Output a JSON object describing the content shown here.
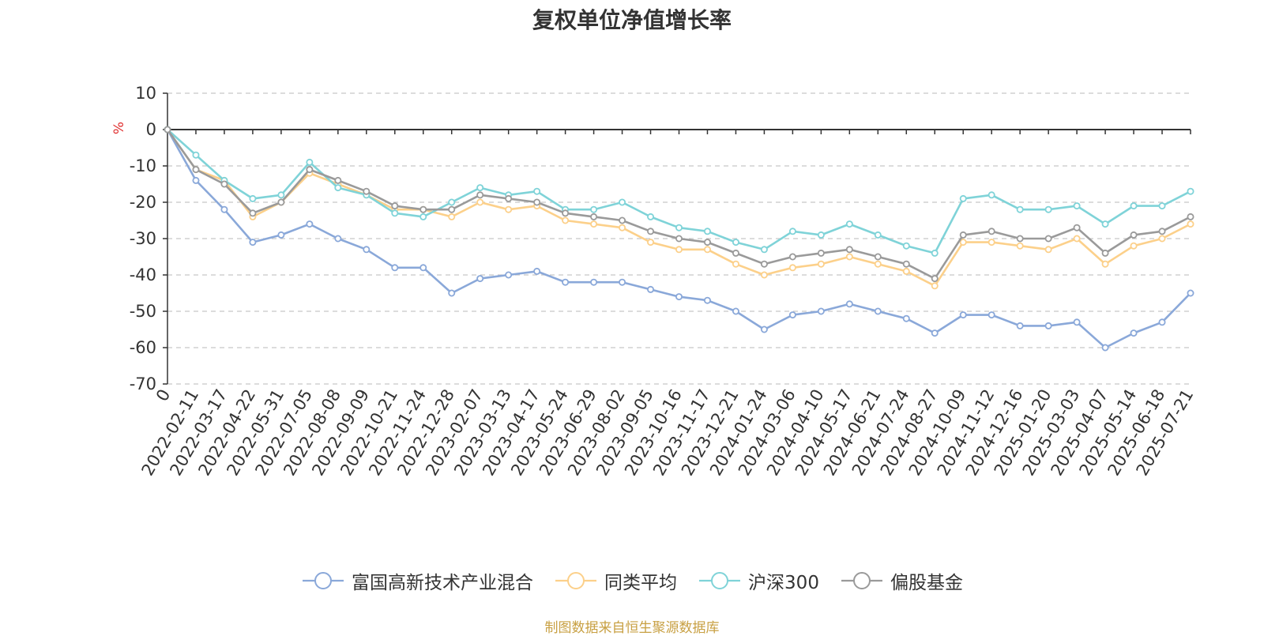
{
  "chart_data": {
    "type": "line",
    "title": "复权单位净值增长率",
    "ylabel": "%",
    "ylim": [
      -70,
      10
    ],
    "yticks": [
      10,
      0,
      -10,
      -20,
      -30,
      -40,
      -50,
      -60,
      -70
    ],
    "x_origin_label": "0",
    "grid": true,
    "legend_position": "bottom",
    "x": [
      "2022-02-11",
      "2022-03-17",
      "2022-04-22",
      "2022-05-31",
      "2022-07-05",
      "2022-08-08",
      "2022-09-09",
      "2022-10-21",
      "2022-11-24",
      "2022-12-28",
      "2023-02-07",
      "2023-03-13",
      "2023-04-17",
      "2023-05-24",
      "2023-06-29",
      "2023-08-02",
      "2023-09-05",
      "2023-10-16",
      "2023-11-17",
      "2023-12-21",
      "2024-01-24",
      "2024-03-06",
      "2024-04-10",
      "2024-05-17",
      "2024-06-21",
      "2024-07-24",
      "2024-08-27",
      "2024-10-09",
      "2024-11-12",
      "2024-12-16",
      "2025-01-20",
      "2025-03-03",
      "2025-04-07",
      "2025-05-14",
      "2025-06-18",
      "2025-07-21"
    ],
    "series": [
      {
        "name": "富国高新技术产业混合",
        "color": "#8aa8d9",
        "values": [
          -14,
          -22,
          -31,
          -29,
          -26,
          -30,
          -33,
          -38,
          -38,
          -45,
          -41,
          -40,
          -39,
          -42,
          -42,
          -42,
          -44,
          -46,
          -47,
          -50,
          -55,
          -51,
          -50,
          -48,
          -50,
          -52,
          -56,
          -51,
          -51,
          -54,
          -54,
          -53,
          -60,
          -56,
          -53,
          -45
        ]
      },
      {
        "name": "同类平均",
        "color": "#fcd08a",
        "values": [
          -11,
          -14,
          -24,
          -20,
          -12,
          -15,
          -18,
          -22,
          -22,
          -24,
          -20,
          -22,
          -21,
          -25,
          -26,
          -27,
          -31,
          -33,
          -33,
          -37,
          -40,
          -38,
          -37,
          -35,
          -37,
          -39,
          -43,
          -31,
          -31,
          -32,
          -33,
          -30,
          -37,
          -32,
          -30,
          -26
        ]
      },
      {
        "name": "沪深300",
        "color": "#7fd3d8",
        "values": [
          -7,
          -14,
          -19,
          -18,
          -9,
          -16,
          -18,
          -23,
          -24,
          -20,
          -16,
          -18,
          -17,
          -22,
          -22,
          -20,
          -24,
          -27,
          -28,
          -31,
          -33,
          -28,
          -29,
          -26,
          -29,
          -32,
          -34,
          -19,
          -18,
          -22,
          -22,
          -21,
          -26,
          -21,
          -21,
          -17
        ]
      },
      {
        "name": "偏股基金",
        "color": "#9a9a9a",
        "values": [
          -11,
          -15,
          -23,
          -20,
          -11,
          -14,
          -17,
          -21,
          -22,
          -22,
          -18,
          -19,
          -20,
          -23,
          -24,
          -25,
          -28,
          -30,
          -31,
          -34,
          -37,
          -35,
          -34,
          -33,
          -35,
          -37,
          -41,
          -29,
          -28,
          -30,
          -30,
          -27,
          -34,
          -29,
          -28,
          -24
        ]
      }
    ]
  },
  "source_note": "制图数据来自恒生聚源数据库"
}
